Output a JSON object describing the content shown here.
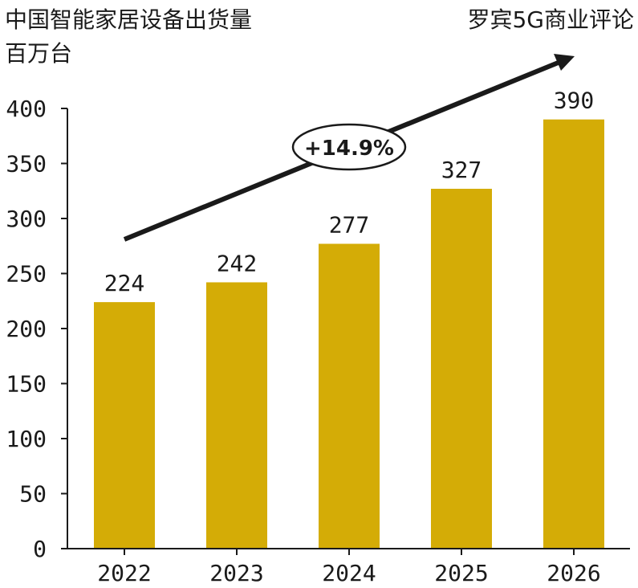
{
  "header": {
    "title": "中国智能家居设备出货量",
    "unit": "百万台",
    "source": "罗宾5G商业评论"
  },
  "annotation": {
    "growth_label": "+14.9%"
  },
  "colors": {
    "bar": "#D4AC06",
    "axis": "#1a1a1a",
    "text": "#1a1a1a",
    "arrow": "#1a1a1a"
  },
  "chart_data": {
    "type": "bar",
    "title": "中国智能家居设备出货量",
    "ylabel": "百万台",
    "xlabel": "",
    "categories": [
      "2022",
      "2023",
      "2024",
      "2025",
      "2026"
    ],
    "values": [
      224,
      242,
      277,
      327,
      390
    ],
    "ylim": [
      0,
      400
    ],
    "yticks": [
      0,
      50,
      100,
      150,
      200,
      250,
      300,
      350,
      400
    ],
    "grid": false,
    "legend": "none"
  }
}
